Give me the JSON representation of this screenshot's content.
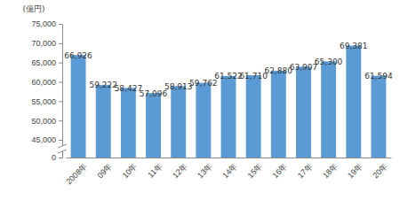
{
  "chart_data": {
    "type": "bar",
    "ylabel": "(億円)",
    "categories": [
      "2008年",
      "09年",
      "10年",
      "11年",
      "12年",
      "13年",
      "14年",
      "15年",
      "16年",
      "17年",
      "18年",
      "19年",
      "20年"
    ],
    "values": [
      66926,
      59222,
      58427,
      57096,
      58913,
      59762,
      61522,
      61710,
      62880,
      63907,
      65300,
      69381,
      61594
    ],
    "value_labels": [
      "66,926",
      "59,222",
      "58,427",
      "57,096",
      "58,913",
      "59,762",
      "61,522",
      "61,710",
      "62,880",
      "63,907",
      "65,300",
      "69,381",
      "61,594"
    ],
    "data_labels": true,
    "color": "#5b9bd5",
    "ylim": [
      0,
      75000
    ],
    "yticks": [
      0,
      {
        "value": 45000,
        "label": "45,000"
      },
      {
        "value": 50000,
        "label": "50,000"
      },
      {
        "value": 55000,
        "label": "55,000"
      },
      {
        "value": 60000,
        "label": "60,000"
      },
      {
        "value": 65000,
        "label": "65,000"
      },
      {
        "value": 70000,
        "label": "70,000"
      },
      {
        "value": 75000,
        "label": "75,000"
      }
    ],
    "grid": false
  }
}
